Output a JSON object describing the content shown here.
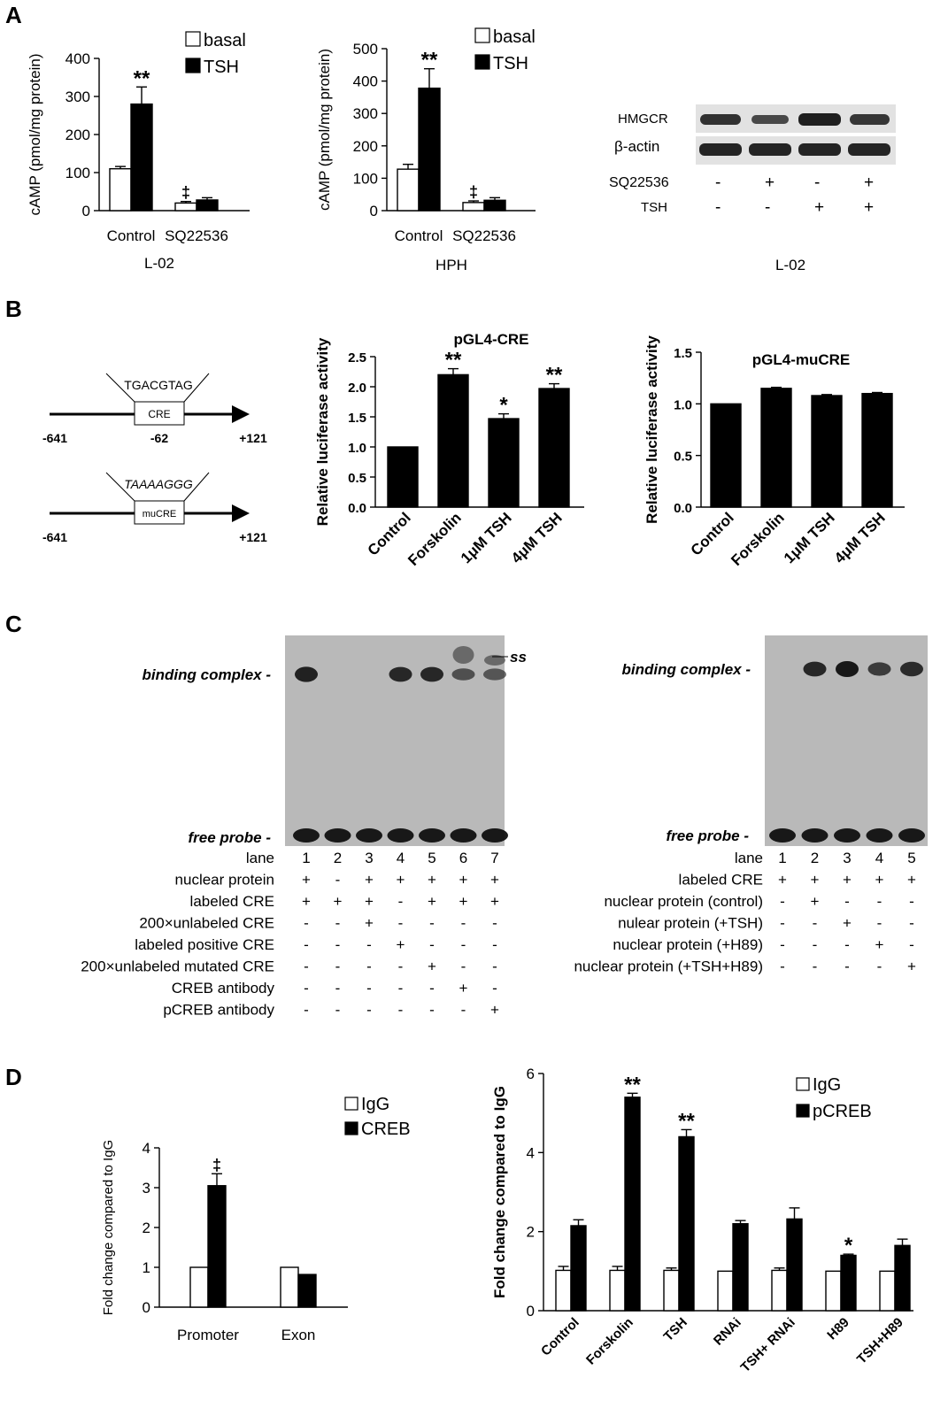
{
  "panel_labels": {
    "a": "A",
    "b": "B",
    "c": "C",
    "d": "D"
  },
  "chart_data": [
    {
      "id": "a1",
      "type": "bar",
      "ylabel": "cAMP (pmol/mg protein)",
      "xlabel": "L-02",
      "categories": [
        "Control",
        "SQ22536"
      ],
      "ylim": [
        0,
        400
      ],
      "yticks": [
        0,
        100,
        200,
        300,
        400
      ],
      "series": [
        {
          "name": "basal",
          "values": [
            110,
            20
          ],
          "errors": [
            6,
            4
          ],
          "color": "#ffffff"
        },
        {
          "name": "TSH",
          "values": [
            280,
            28
          ],
          "errors": [
            45,
            6
          ],
          "color": "#000000"
        }
      ],
      "annotations": [
        {
          "text": "**",
          "category": 0,
          "series": 1
        },
        {
          "text": "‡",
          "category": 1,
          "series": 0
        }
      ],
      "legend": "top-right"
    },
    {
      "id": "a2",
      "type": "bar",
      "ylabel": "cAMP (pmol/mg protein)",
      "xlabel": "HPH",
      "categories": [
        "Control",
        "SQ22536"
      ],
      "ylim": [
        0,
        500
      ],
      "yticks": [
        0,
        100,
        200,
        300,
        400,
        500
      ],
      "series": [
        {
          "name": "basal",
          "values": [
            128,
            25
          ],
          "errors": [
            15,
            5
          ],
          "color": "#ffffff"
        },
        {
          "name": "TSH",
          "values": [
            378,
            32
          ],
          "errors": [
            60,
            8
          ],
          "color": "#000000"
        }
      ],
      "annotations": [
        {
          "text": "**",
          "category": 0,
          "series": 1
        },
        {
          "text": "‡",
          "category": 1,
          "series": 0
        }
      ],
      "legend": "top-right"
    },
    {
      "id": "b1",
      "type": "bar",
      "title": "pGL4-CRE",
      "ylabel": "Relative luciferase activity",
      "categories": [
        "Control",
        "Forskolin",
        "1μM TSH",
        "4μM TSH"
      ],
      "ylim": [
        0,
        2.5
      ],
      "yticks": [
        "0.0",
        "0.5",
        "1.0",
        "1.5",
        "2.0",
        "2.5"
      ],
      "series": [
        {
          "values": [
            1.0,
            2.2,
            1.47,
            1.97
          ],
          "errors": [
            0,
            0.1,
            0.08,
            0.08
          ],
          "color": "#000000"
        }
      ],
      "annotations": [
        {
          "text": "**",
          "category": 1,
          "series": 0
        },
        {
          "text": "*",
          "category": 2,
          "series": 0
        },
        {
          "text": "**",
          "category": 3,
          "series": 0
        }
      ]
    },
    {
      "id": "b2",
      "type": "bar",
      "title": "pGL4-muCRE",
      "ylabel": "Relative luciferase activity",
      "categories": [
        "Control",
        "Forskolin",
        "1μM TSH",
        "4μM TSH"
      ],
      "ylim": [
        0,
        1.5
      ],
      "yticks": [
        "0.0",
        "0.5",
        "1.0",
        "1.5"
      ],
      "series": [
        {
          "values": [
            1.0,
            1.15,
            1.08,
            1.1
          ],
          "errors": [
            0,
            0.01,
            0.01,
            0.01
          ],
          "color": "#000000"
        }
      ],
      "annotations": []
    },
    {
      "id": "d1",
      "type": "bar",
      "ylabel": "Fold change compared to IgG",
      "categories": [
        "Promoter",
        "Exon"
      ],
      "ylim": [
        0,
        4
      ],
      "yticks": [
        0,
        1,
        2,
        3,
        4
      ],
      "series": [
        {
          "name": "IgG",
          "values": [
            1.0,
            1.0
          ],
          "errors": [
            0,
            0
          ],
          "color": "#ffffff"
        },
        {
          "name": "CREB",
          "values": [
            3.05,
            0.82
          ],
          "errors": [
            0.3,
            0
          ],
          "color": "#000000"
        }
      ],
      "annotations": [
        {
          "text": "‡",
          "category": 0,
          "series": 1
        }
      ],
      "legend": "top-right"
    },
    {
      "id": "d2",
      "type": "bar",
      "ylabel": "Fold change compared to IgG",
      "categories": [
        "Control",
        "Forskolin",
        "TSH",
        "RNAi",
        "TSH+ RNAi",
        "H89",
        "TSH+H89"
      ],
      "ylim": [
        0,
        6
      ],
      "yticks": [
        0,
        2,
        4,
        6
      ],
      "series": [
        {
          "name": "IgG",
          "values": [
            1.02,
            1.02,
            1.02,
            1.0,
            1.02,
            1.0,
            1.0
          ],
          "errors": [
            0.1,
            0.1,
            0.06,
            0,
            0.06,
            0,
            0
          ],
          "color": "#ffffff"
        },
        {
          "name": "pCREB",
          "values": [
            2.15,
            5.4,
            4.4,
            2.2,
            2.32,
            1.4,
            1.65
          ],
          "errors": [
            0.15,
            0.1,
            0.18,
            0.08,
            0.28,
            0.03,
            0.16
          ],
          "color": "#000000"
        }
      ],
      "annotations": [
        {
          "text": "**",
          "category": 1,
          "series": 1
        },
        {
          "text": "**",
          "category": 2,
          "series": 1
        },
        {
          "text": "*",
          "category": 5,
          "series": 1
        }
      ],
      "legend": "top-right"
    }
  ],
  "western_blot": {
    "caption": "L-02",
    "bands": [
      "HMGCR",
      "β-actin"
    ],
    "hmgcr_intensity": [
      0.8,
      0.55,
      1.0,
      0.75
    ],
    "rows": [
      {
        "label": "SQ22536",
        "marks": [
          "-",
          "+",
          "-",
          "+"
        ]
      },
      {
        "label": "TSH",
        "marks": [
          "-",
          "-",
          "+",
          "+"
        ]
      }
    ]
  },
  "constructs": [
    {
      "sequence": "TGACGTAG",
      "box": "CRE",
      "start": "-641",
      "site": "-62",
      "end": "+121"
    },
    {
      "sequence": "TAAAAGGG",
      "box": "muCRE",
      "start": "-641",
      "end": "+121"
    }
  ],
  "emsa": [
    {
      "labels": {
        "top": "binding complex",
        "bottom": "free probe",
        "extra": "ss"
      },
      "lane_header": "lane",
      "lanes": [
        "1",
        "2",
        "3",
        "4",
        "5",
        "6",
        "7"
      ],
      "band_intensity": [
        0.9,
        0,
        0,
        0.85,
        0.85,
        0.45,
        0.4
      ],
      "rows": [
        {
          "label": "nuclear protein",
          "marks": [
            "+",
            "-",
            "+",
            "+",
            "+",
            "+",
            "+"
          ]
        },
        {
          "label": "labeled CRE",
          "marks": [
            "+",
            "+",
            "+",
            "-",
            "+",
            "+",
            "+"
          ]
        },
        {
          "label": "200×unlabeled CRE",
          "marks": [
            "-",
            "-",
            "+",
            "-",
            "-",
            "-",
            "-"
          ]
        },
        {
          "label": "labeled positive CRE",
          "marks": [
            "-",
            "-",
            "-",
            "+",
            "-",
            "-",
            "-"
          ]
        },
        {
          "label": "200×unlabeled mutated CRE",
          "marks": [
            "-",
            "-",
            "-",
            "-",
            "+",
            "-",
            "-"
          ]
        },
        {
          "label": "CREB antibody",
          "marks": [
            "-",
            "-",
            "-",
            "-",
            "-",
            "+",
            "-"
          ]
        },
        {
          "label": "pCREB antibody",
          "marks": [
            "-",
            "-",
            "-",
            "-",
            "-",
            "-",
            "+"
          ]
        }
      ]
    },
    {
      "labels": {
        "top": "binding complex",
        "bottom": "free probe"
      },
      "lane_header": "lane",
      "lanes": [
        "1",
        "2",
        "3",
        "4",
        "5"
      ],
      "band_intensity": [
        0,
        0.85,
        1.0,
        0.65,
        0.8
      ],
      "rows": [
        {
          "label": "labeled CRE",
          "marks": [
            "+",
            "+",
            "+",
            "+",
            "+"
          ]
        },
        {
          "label": "nuclear protein (control)",
          "marks": [
            "-",
            "+",
            "-",
            "-",
            "-"
          ]
        },
        {
          "label": "nulear protein (+TSH)",
          "marks": [
            "-",
            "-",
            "+",
            "-",
            "-"
          ]
        },
        {
          "label": "nuclear protein (+H89)",
          "marks": [
            "-",
            "-",
            "-",
            "+",
            "-"
          ]
        },
        {
          "label": "nuclear protein (+TSH+H89)",
          "marks": [
            "-",
            "-",
            "-",
            "-",
            "+"
          ]
        }
      ]
    }
  ]
}
